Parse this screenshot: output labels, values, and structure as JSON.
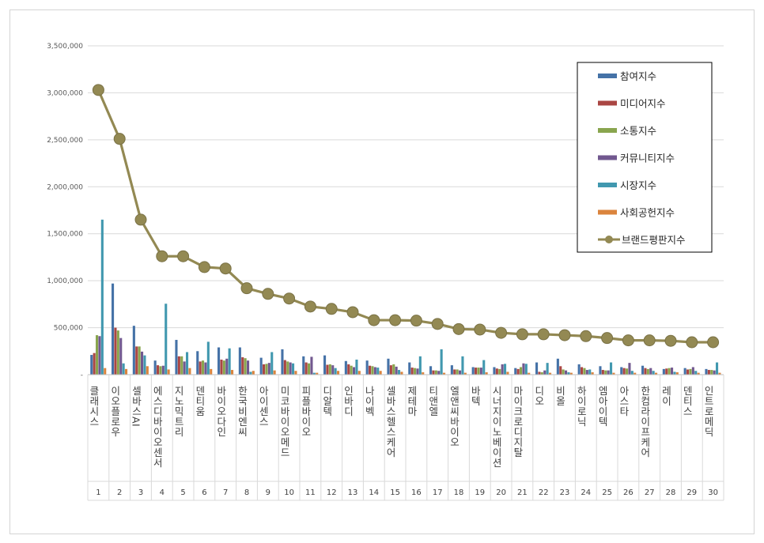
{
  "chart_data": {
    "type": "bar",
    "title": "",
    "xlabel": "",
    "ylabel": "",
    "ylim": [
      0,
      3500000
    ],
    "yticks": [
      0,
      500000,
      1000000,
      1500000,
      2000000,
      2500000,
      3000000,
      3500000
    ],
    "ytick_labels": [
      "-",
      "500,000",
      "1,000,000",
      "1,500,000",
      "2,000,000",
      "2,500,000",
      "3,000,000",
      "3,500,000"
    ],
    "grid": true,
    "legend_position": "top-right",
    "categories": [
      "클래시스",
      "이오플로우",
      "셀바스AI",
      "에스디바이오센서",
      "지노믹트리",
      "덴티움",
      "바이오다인",
      "한국비엔씨",
      "아이센스",
      "미코바이오메드",
      "피플바이오",
      "디알텍",
      "인바디",
      "나이벡",
      "셀바스헬스케어",
      "제테마",
      "티앤엘",
      "엘앤씨바이오",
      "바텍",
      "시너지이노베이션",
      "마이크로디지탈",
      "디오",
      "비올",
      "하이로닉",
      "엠아이텍",
      "아스타",
      "한컴라이프케어",
      "레이",
      "덴티스",
      "인트로메딕"
    ],
    "ranks": [
      "1",
      "2",
      "3",
      "4",
      "5",
      "6",
      "7",
      "8",
      "9",
      "10",
      "11",
      "12",
      "13",
      "14",
      "15",
      "16",
      "17",
      "18",
      "19",
      "20",
      "21",
      "22",
      "23",
      "24",
      "25",
      "26",
      "27",
      "28",
      "29",
      "30"
    ],
    "series": [
      {
        "name": "참여지수",
        "type": "bar",
        "color": "#4572a7",
        "values": [
          210000,
          970000,
          520000,
          150000,
          370000,
          250000,
          290000,
          290000,
          180000,
          270000,
          195000,
          205000,
          145000,
          150000,
          170000,
          130000,
          90000,
          100000,
          80000,
          80000,
          70000,
          130000,
          170000,
          110000,
          90000,
          80000,
          95000,
          60000,
          70000,
          60000
        ]
      },
      {
        "name": "미디어지수",
        "type": "bar",
        "color": "#aa4643",
        "values": [
          230000,
          500000,
          300000,
          100000,
          195000,
          140000,
          160000,
          185000,
          110000,
          155000,
          130000,
          105000,
          110000,
          95000,
          100000,
          75000,
          45000,
          55000,
          75000,
          65000,
          60000,
          30000,
          90000,
          80000,
          50000,
          70000,
          70000,
          65000,
          55000,
          50000
        ]
      },
      {
        "name": "소통지수",
        "type": "bar",
        "color": "#89a54e",
        "values": [
          420000,
          470000,
          300000,
          90000,
          195000,
          150000,
          150000,
          175000,
          115000,
          140000,
          120000,
          110000,
          95000,
          90000,
          110000,
          70000,
          45000,
          55000,
          75000,
          60000,
          80000,
          25000,
          55000,
          70000,
          45000,
          65000,
          60000,
          70000,
          60000,
          50000
        ]
      },
      {
        "name": "커뮤니티지수",
        "type": "bar",
        "color": "#71588f",
        "values": [
          410000,
          390000,
          245000,
          95000,
          140000,
          130000,
          170000,
          150000,
          125000,
          130000,
          190000,
          100000,
          80000,
          80000,
          85000,
          65000,
          40000,
          45000,
          75000,
          110000,
          120000,
          45000,
          45000,
          50000,
          45000,
          125000,
          70000,
          75000,
          80000,
          45000
        ]
      },
      {
        "name": "시장지수",
        "type": "bar",
        "color": "#4198af",
        "values": [
          1650000,
          120000,
          205000,
          755000,
          240000,
          350000,
          280000,
          30000,
          240000,
          120000,
          20000,
          70000,
          160000,
          75000,
          50000,
          195000,
          270000,
          195000,
          155000,
          115000,
          115000,
          125000,
          25000,
          55000,
          130000,
          40000,
          40000,
          30000,
          40000,
          130000
        ]
      },
      {
        "name": "사회공헌지수",
        "type": "bar",
        "color": "#db843d",
        "values": [
          70000,
          60000,
          90000,
          55000,
          70000,
          60000,
          50000,
          40000,
          45000,
          40000,
          20000,
          40000,
          40000,
          40000,
          30000,
          25000,
          20000,
          20000,
          25000,
          30000,
          20000,
          20000,
          20000,
          25000,
          20000,
          20000,
          20000,
          25000,
          20000,
          20000
        ]
      },
      {
        "name": "브랜드평판지수",
        "type": "line",
        "color": "#938953",
        "values": [
          3030000,
          2510000,
          1650000,
          1260000,
          1260000,
          1145000,
          1130000,
          920000,
          860000,
          810000,
          725000,
          700000,
          665000,
          580000,
          580000,
          575000,
          540000,
          485000,
          480000,
          445000,
          430000,
          430000,
          420000,
          410000,
          390000,
          365000,
          365000,
          360000,
          345000,
          345000
        ]
      }
    ]
  }
}
